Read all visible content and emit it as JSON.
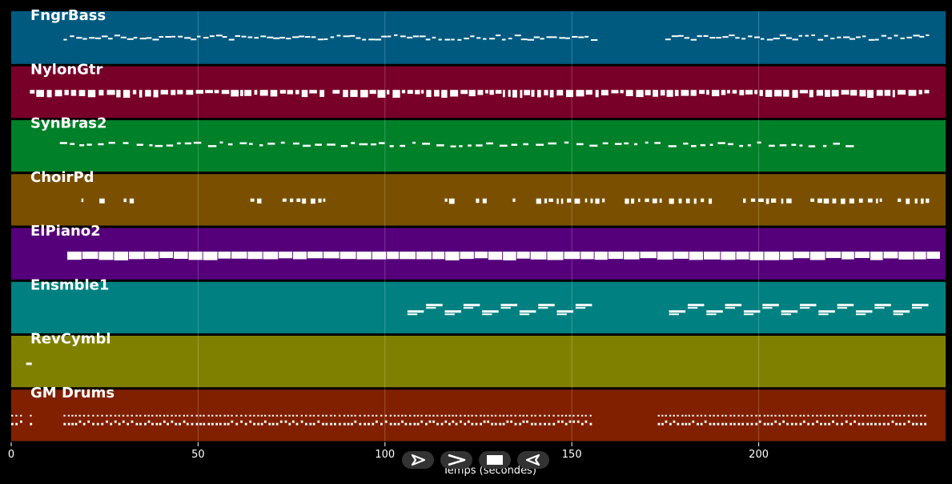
{
  "player": {
    "controls": [
      {
        "name": "play-outline-icon"
      },
      {
        "name": "forward-chevron-icon"
      },
      {
        "name": "stop-icon"
      },
      {
        "name": "back-outline-icon"
      }
    ]
  },
  "chart_data": {
    "type": "piano-roll",
    "xlabel": "Temps (secondes)",
    "xlim": [
      0,
      250
    ],
    "xticks": [
      0,
      50,
      100,
      150,
      200
    ],
    "grid": true,
    "tracks": [
      {
        "name": "FngrBass",
        "color": "#005a80",
        "style": "thin-notes",
        "segments": [
          [
            14,
            156
          ],
          [
            175,
            245
          ]
        ]
      },
      {
        "name": "NylonGtr",
        "color": "#780028",
        "style": "dense-blocks",
        "segments": [
          [
            5,
            84
          ],
          [
            86,
            245
          ]
        ]
      },
      {
        "name": "SynBras2",
        "color": "#008028",
        "style": "dashes",
        "segments": [
          [
            13,
            225
          ]
        ]
      },
      {
        "name": "ChoirPd",
        "color": "#7a5000",
        "style": "sparse-blocks",
        "segments": [
          [
            16,
            32
          ],
          [
            64,
            84
          ],
          [
            116,
            174
          ],
          [
            176,
            245
          ]
        ]
      },
      {
        "name": "ElPiano2",
        "color": "#55007a",
        "style": "blocks",
        "segments": [
          [
            15,
            245
          ]
        ]
      },
      {
        "name": "Ensmble1",
        "color": "#008080",
        "style": "bars",
        "segments": [
          [
            106,
            156
          ],
          [
            176,
            245
          ]
        ]
      },
      {
        "name": "RevCymbl",
        "color": "#808000",
        "style": "single",
        "segments": [
          [
            4,
            5
          ]
        ]
      },
      {
        "name": "GM Drums",
        "color": "#802000",
        "style": "drums",
        "segments": [
          [
            0,
            3
          ],
          [
            5,
            6
          ],
          [
            14,
            156
          ],
          [
            173,
            245
          ]
        ]
      }
    ]
  }
}
